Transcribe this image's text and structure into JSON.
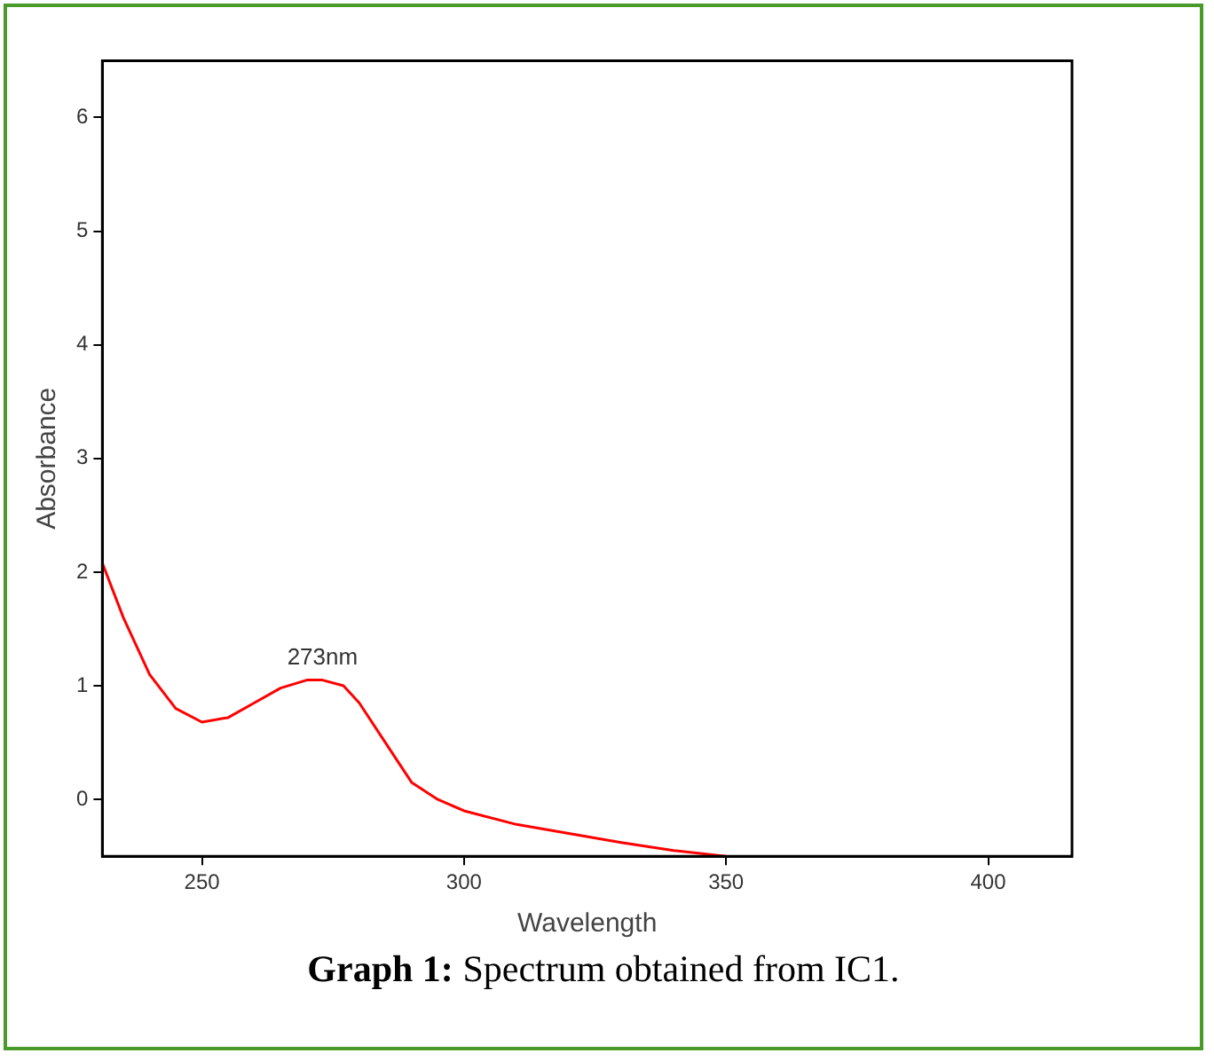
{
  "chart_data": {
    "type": "line",
    "xlabel": "Wavelength",
    "ylabel": "Absorbance",
    "x": [
      231,
      235,
      240,
      245,
      250,
      255,
      260,
      265,
      270,
      273,
      277,
      280,
      285,
      290,
      295,
      300,
      310,
      320,
      330,
      340,
      350
    ],
    "series": [
      {
        "color": "#ff0000",
        "values": [
          2.08,
          1.6,
          1.1,
          0.8,
          0.68,
          0.72,
          0.85,
          0.98,
          1.05,
          1.05,
          1.0,
          0.85,
          0.5,
          0.15,
          0.0,
          -0.1,
          -0.22,
          -0.3,
          -0.38,
          -0.45,
          -0.5
        ]
      }
    ],
    "xlim": [
      231,
      416
    ],
    "xticks": [
      250,
      300,
      350,
      400
    ],
    "ylim": [
      -0.5,
      6.5
    ],
    "yticks": [
      0,
      1,
      2,
      3,
      4,
      5,
      6
    ],
    "grid": false,
    "legend": false,
    "marker": "none",
    "line_style": "solid",
    "annotations": [
      {
        "text": "273nm",
        "x": 273,
        "y": 1.05
      },
      "Graph 1: Spectrum obtained from IC1."
    ]
  }
}
